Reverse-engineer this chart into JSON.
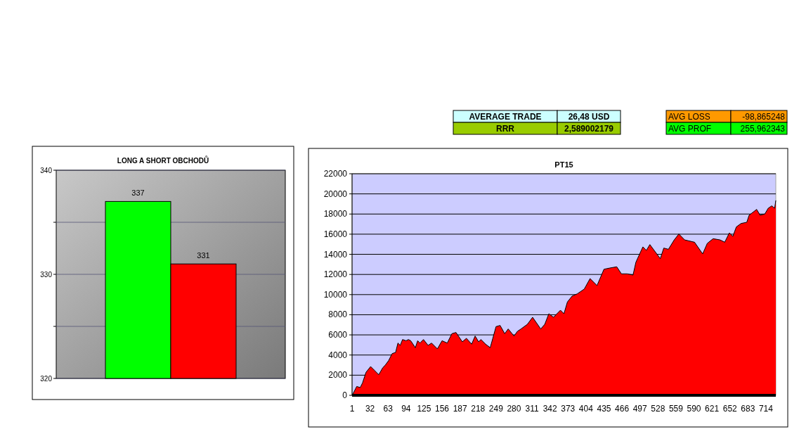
{
  "chart_data": [
    {
      "type": "other",
      "annotations": [
        "AVERAGE TRADE",
        "26,48 USD",
        "RRR",
        "2,589002179",
        "AVG LOSS",
        "-98,865248",
        "AVG PROF",
        "255,962343"
      ]
    },
    {
      "type": "bar",
      "title": "LONG A SHORT OBCHODŮ",
      "categories": [
        null,
        null
      ],
      "values": [
        337,
        331
      ],
      "colors": [
        "#00ff00",
        "#ff0000"
      ],
      "ylim": [
        320,
        340
      ],
      "yticks": [
        320,
        {
          "value": 325,
          "label": null
        },
        330,
        {
          "value": 335,
          "label": null
        },
        340
      ],
      "grid": "y",
      "data_labels": true
    },
    {
      "type": "area",
      "title": "PT15",
      "series": [
        {
          "color": "#ff0000",
          "x": [
            1,
            5,
            9,
            15,
            19,
            25,
            33,
            39,
            47,
            54,
            58,
            64,
            70,
            76,
            80,
            84,
            88,
            94,
            98,
            102,
            110,
            114,
            118,
            124,
            132,
            138,
            148,
            156,
            165,
            173,
            180,
            191,
            198,
            207,
            213,
            219,
            223,
            231,
            239,
            249,
            256,
            264,
            270,
            280,
            286,
            292,
            303,
            312,
            326,
            333,
            340,
            348,
            360,
            366,
            372,
            380,
            389,
            401,
            411,
            423,
            435,
            445,
            457,
            465,
            475,
            485,
            490,
            502,
            508,
            514,
            532,
            538,
            546,
            556,
            564,
            574,
            591,
            605,
            613,
            623,
            635,
            643,
            651,
            657,
            663,
            671,
            681,
            685,
            698,
            704,
            712,
            718,
            724,
            729,
            731
          ],
          "values": [
            0,
            420,
            880,
            770,
            1230,
            2280,
            2860,
            2510,
            2050,
            2750,
            2980,
            3450,
            4140,
            4260,
            5190,
            4960,
            5540,
            5420,
            5540,
            5420,
            4730,
            5420,
            5190,
            5540,
            4960,
            5190,
            4610,
            5420,
            5190,
            6120,
            6240,
            5310,
            5660,
            5080,
            5890,
            5310,
            5540,
            5080,
            4730,
            6820,
            6940,
            6120,
            6590,
            5890,
            6360,
            6590,
            7050,
            7750,
            6590,
            7050,
            8100,
            7750,
            8450,
            8100,
            9270,
            9850,
            10080,
            10550,
            11590,
            10900,
            12520,
            12640,
            12760,
            12060,
            12060,
            11940,
            13220,
            14740,
            14390,
            14970,
            13570,
            14620,
            14500,
            15430,
            16020,
            15430,
            15200,
            14040,
            15090,
            15550,
            15430,
            15200,
            16130,
            15780,
            16720,
            17060,
            17180,
            17880,
            18460,
            17880,
            18000,
            18580,
            18810,
            18580,
            19350
          ]
        }
      ],
      "xlim": [
        1,
        731
      ],
      "xticks": [
        1,
        32,
        63,
        94,
        125,
        156,
        187,
        218,
        249,
        280,
        311,
        342,
        373,
        404,
        435,
        466,
        497,
        528,
        559,
        590,
        621,
        652,
        683,
        714
      ],
      "ylim": [
        0,
        22000
      ],
      "yticks": [
        0,
        2000,
        4000,
        6000,
        8000,
        10000,
        12000,
        14000,
        16000,
        18000,
        20000,
        22000
      ],
      "grid": "y"
    }
  ]
}
